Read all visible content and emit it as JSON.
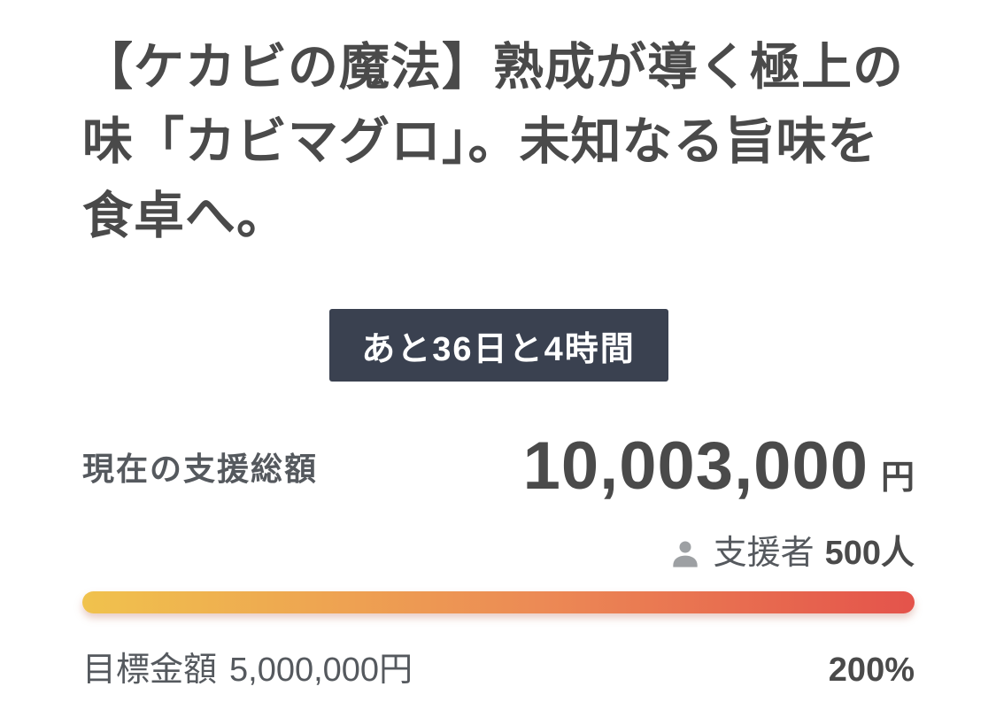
{
  "project": {
    "title": "【ケカビの魔法】熟成が導く極上の味「カビマグロ」。未知なる旨味を食卓へ。"
  },
  "countdown": {
    "remaining": "あと36日と4時間"
  },
  "funding": {
    "current_label": "現在の支援総額",
    "current_amount": "10,003,000",
    "currency_unit": "円",
    "supporters_label": "支援者",
    "supporters_value": "500人",
    "goal_label": "目標金額",
    "goal_amount": "5,000,000円",
    "achievement_percent": "200%",
    "progress_ratio": 1.0
  },
  "icons": {
    "supporter_icon": "person-icon"
  },
  "colors": {
    "badge_bg": "#3a4150",
    "badge_text": "#ffffff",
    "text_primary": "#4a4a4a",
    "text_secondary": "#55595e",
    "icon_gray": "#9da0a3",
    "bar_gradient_start": "#f0c24d",
    "bar_gradient_mid": "#ec8a55",
    "bar_gradient_end": "#e4534b"
  }
}
